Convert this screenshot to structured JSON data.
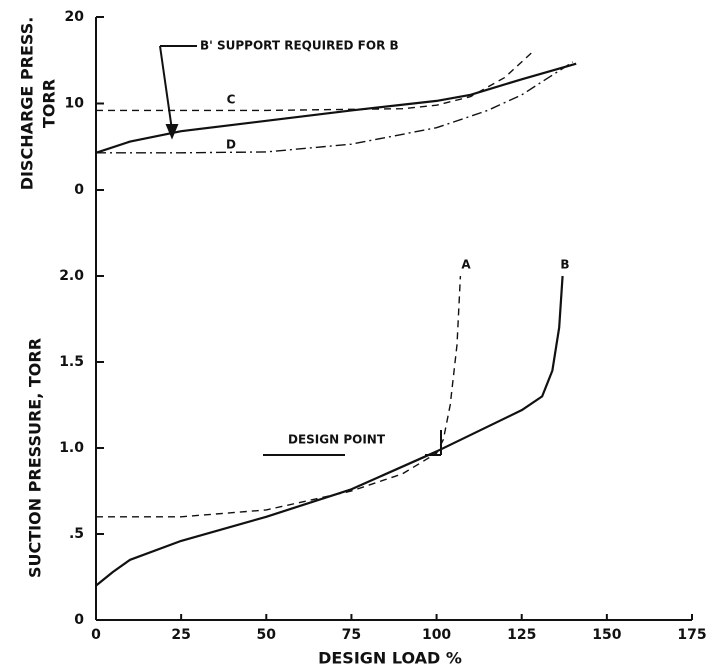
{
  "chart_data": [
    {
      "type": "line",
      "ylabel": [
        "DISCHARGE PRESS.",
        "TORR"
      ],
      "ylim": [
        0,
        20
      ],
      "yticks": [
        0,
        10,
        20
      ],
      "annotations": [
        "B' SUPPORT REQUIRED FOR B"
      ],
      "series": [
        {
          "color": "#111111",
          "dash": "solid",
          "x": [
            0,
            10,
            25,
            50,
            75,
            100,
            110,
            125,
            141
          ],
          "values": [
            4.3,
            5.6,
            6.8,
            8.0,
            9.2,
            10.3,
            11.0,
            12.8,
            14.6
          ]
        },
        {
          "name": "C",
          "color": "#111111",
          "dash": "dashed",
          "x": [
            0,
            50,
            90,
            100,
            110,
            120,
            128
          ],
          "values": [
            9.2,
            9.2,
            9.4,
            9.8,
            10.8,
            13.0,
            15.9
          ]
        },
        {
          "name": "D",
          "color": "#111111",
          "dash": "dashdot",
          "x": [
            0,
            25,
            50,
            75,
            100,
            115,
            125,
            140
          ],
          "values": [
            4.3,
            4.3,
            4.4,
            5.3,
            7.2,
            9.2,
            11.0,
            14.8
          ]
        }
      ]
    },
    {
      "type": "line",
      "xlabel": "DESIGN LOAD %",
      "ylabel": "SUCTION PRESSURE, TORR",
      "xlim": [
        0,
        175
      ],
      "xticks": [
        0,
        25,
        50,
        75,
        100,
        125,
        150,
        175
      ],
      "ylim": [
        0,
        2
      ],
      "yticks": [
        0,
        {
          "value": 0.5,
          "label": ".5"
        },
        {
          "value": 1.0,
          "label": "1.0"
        },
        {
          "value": 1.5,
          "label": "1.5"
        },
        {
          "value": 2.0,
          "label": "2.0"
        }
      ],
      "annotations": [
        "DESIGN POINT"
      ],
      "series": [
        {
          "name": "A",
          "color": "#111111",
          "dash": "dashed",
          "x": [
            0,
            25,
            50,
            75,
            90,
            100,
            102,
            104,
            106,
            107
          ],
          "values": [
            0.6,
            0.6,
            0.64,
            0.75,
            0.85,
            0.97,
            1.05,
            1.25,
            1.6,
            2.0
          ]
        },
        {
          "name": "B",
          "color": "#111111",
          "dash": "solid",
          "x": [
            0,
            5,
            10,
            25,
            50,
            75,
            100,
            125,
            131,
            134,
            136,
            137
          ],
          "values": [
            0.2,
            0.28,
            0.35,
            0.46,
            0.6,
            0.76,
            0.98,
            1.22,
            1.3,
            1.45,
            1.7,
            2.0
          ]
        }
      ]
    }
  ]
}
